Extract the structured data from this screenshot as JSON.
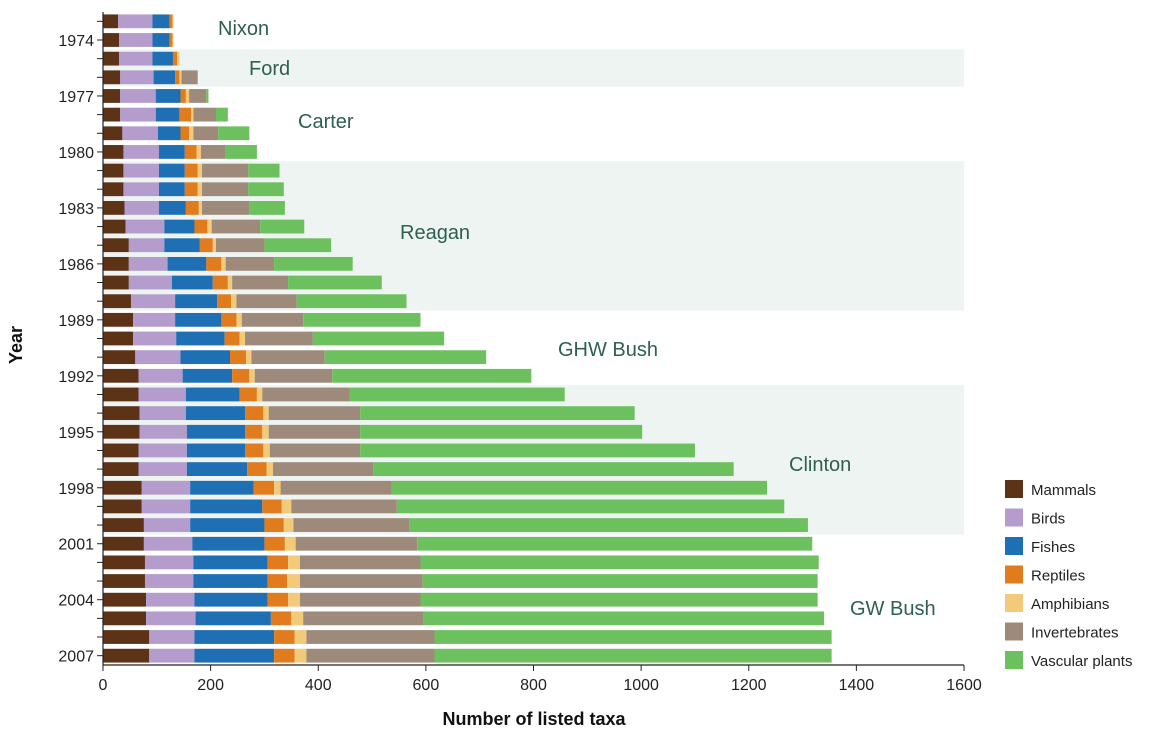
{
  "chart_data": {
    "type": "bar",
    "orientation": "horizontal",
    "stacked": true,
    "xlabel": "Number of listed taxa",
    "ylabel": "Year",
    "xlim": [
      0,
      1600
    ],
    "xticks": [
      0,
      200,
      400,
      600,
      800,
      1000,
      1200,
      1400,
      1600
    ],
    "ytick_labels": [
      "1974",
      "1977",
      "1980",
      "1983",
      "1986",
      "1989",
      "1992",
      "1995",
      "1998",
      "2001",
      "2004",
      "2007"
    ],
    "categories": [
      "1973",
      "1974",
      "1975",
      "1976",
      "1977",
      "1978",
      "1979",
      "1980",
      "1981",
      "1982",
      "1983",
      "1984",
      "1985",
      "1986",
      "1987",
      "1988",
      "1989",
      "1990",
      "1991",
      "1992",
      "1993",
      "1994",
      "1995",
      "1996",
      "1997",
      "1998",
      "1999",
      "2000",
      "2001",
      "2002",
      "2003",
      "2004",
      "2005",
      "2006",
      "2007"
    ],
    "series": [
      {
        "name": "Mammals",
        "color": "#5c3317",
        "values": [
          28,
          30,
          30,
          32,
          32,
          32,
          36,
          38,
          38,
          38,
          40,
          42,
          48,
          48,
          48,
          52,
          56,
          56,
          60,
          66,
          66,
          68,
          68,
          66,
          66,
          72,
          72,
          76,
          76,
          78,
          78,
          80,
          80,
          86,
          86
        ]
      },
      {
        "name": "Birds",
        "color": "#b49ccc",
        "values": [
          64,
          62,
          62,
          62,
          66,
          66,
          66,
          66,
          66,
          66,
          64,
          72,
          66,
          72,
          80,
          82,
          78,
          80,
          84,
          82,
          88,
          86,
          88,
          90,
          90,
          90,
          90,
          86,
          90,
          90,
          90,
          90,
          92,
          84,
          84
        ]
      },
      {
        "name": "Fishes",
        "color": "#1f6fb5",
        "values": [
          32,
          32,
          38,
          40,
          46,
          44,
          42,
          48,
          48,
          48,
          50,
          56,
          66,
          72,
          76,
          78,
          86,
          90,
          92,
          92,
          100,
          110,
          108,
          108,
          112,
          118,
          134,
          138,
          134,
          138,
          138,
          136,
          140,
          148,
          148
        ]
      },
      {
        "name": "Reptiles",
        "color": "#e07b1e",
        "values": [
          5,
          5,
          8,
          8,
          10,
          22,
          16,
          22,
          24,
          24,
          24,
          24,
          24,
          28,
          28,
          26,
          28,
          28,
          30,
          32,
          32,
          34,
          32,
          34,
          36,
          38,
          36,
          36,
          38,
          38,
          36,
          38,
          38,
          38,
          38
        ]
      },
      {
        "name": "Amphibians",
        "color": "#f3c97a",
        "values": [
          2,
          2,
          4,
          4,
          6,
          4,
          8,
          8,
          8,
          8,
          6,
          8,
          6,
          8,
          8,
          10,
          10,
          10,
          10,
          10,
          10,
          10,
          12,
          12,
          12,
          12,
          18,
          18,
          20,
          22,
          24,
          22,
          22,
          22,
          22
        ]
      },
      {
        "name": "Invertebrates",
        "color": "#9e8a7a",
        "values": [
          0,
          0,
          0,
          30,
          32,
          42,
          46,
          46,
          86,
          86,
          88,
          90,
          90,
          90,
          104,
          112,
          114,
          126,
          136,
          144,
          162,
          170,
          170,
          168,
          186,
          206,
          196,
          216,
          226,
          224,
          228,
          224,
          224,
          238,
          238
        ]
      },
      {
        "name": "Vascular plants",
        "color": "#6cc05e",
        "values": [
          0,
          0,
          0,
          0,
          4,
          22,
          58,
          58,
          58,
          66,
          66,
          82,
          124,
          146,
          174,
          204,
          218,
          244,
          300,
          370,
          400,
          510,
          524,
          622,
          670,
          698,
          720,
          740,
          734,
          740,
          734,
          738,
          744,
          738,
          738
        ]
      }
    ],
    "annotations": [
      "Nixon",
      "Ford",
      "Carter",
      "Reagan",
      "GHW Bush",
      "Clinton",
      "GW Bush"
    ],
    "grid": false,
    "legend_position": "bottom-right"
  }
}
